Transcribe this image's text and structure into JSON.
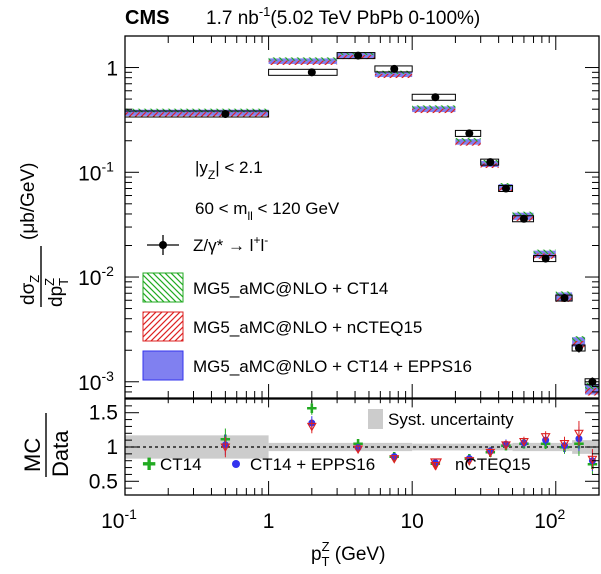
{
  "header": {
    "experiment": "CMS",
    "lumi": "1.7 nb",
    "lumi_exp": "-1",
    "conditions": "(5.02 TeV PbPb 0-100%)"
  },
  "colors": {
    "data": "#000000",
    "ct14": "#22aa22",
    "nCTEQ15": "#dd2222",
    "epps16": "#3333ee",
    "epps16_fill": "#8080f0",
    "syst": "#cccccc"
  },
  "chart_data": {
    "type": "scatter",
    "xscale": "log",
    "xlim": [
      0.1,
      200
    ],
    "xlabel": {
      "main": "p",
      "sub": "T",
      "sup": "Z",
      "unit": " (GeV)"
    },
    "x_ticks": [
      {
        "base": "10",
        "exp": "-1",
        "v": 0.1
      },
      {
        "base": "1",
        "exp": "",
        "v": 1
      },
      {
        "base": "10",
        "exp": "",
        "v": 10
      },
      {
        "base": "10",
        "exp": "2",
        "v": 100
      }
    ],
    "top": {
      "yscale": "log",
      "ylim": [
        0.0007,
        2.0
      ],
      "ylabel": {
        "num": "dσ",
        "num_sub": "Z",
        "den": "dp",
        "den_sub": "T",
        "den_sup": "Z",
        "unit": "(μb/GeV)"
      },
      "y_ticks": [
        {
          "base": "1",
          "exp": "",
          "v": 1
        },
        {
          "base": "10",
          "exp": "-1",
          "v": 0.1
        },
        {
          "base": "10",
          "exp": "-2",
          "v": 0.01
        },
        {
          "base": "10",
          "exp": "-3",
          "v": 0.001
        }
      ],
      "annotations": [
        {
          "text": "|y",
          "sub": "Z",
          "rest": "| < 2.1"
        },
        {
          "text": "60 < m",
          "sub": "ll",
          "rest": " < 120 GeV"
        }
      ],
      "legend": [
        {
          "id": "data",
          "label": "Z/γ* → l",
          "sup1": "+",
          "mid": "l",
          "sup2": "-"
        },
        {
          "id": "ct14",
          "label": "MG5_aMC@NLO + CT14"
        },
        {
          "id": "nCTEQ15",
          "label": "MG5_aMC@NLO + nCTEQ15"
        },
        {
          "id": "epps16",
          "label": "MG5_aMC@NLO + CT14 + EPPS16"
        }
      ],
      "bins": [
        {
          "lo": 0.1,
          "hi": 1.0,
          "x": 0.5,
          "data": 0.36,
          "err": 0.03,
          "mc": 0.37,
          "band": 0.025
        },
        {
          "lo": 1.0,
          "hi": 3.0,
          "x": 2.0,
          "data": 0.9,
          "err": 0.04,
          "mc": 1.15,
          "band": 0.07
        },
        {
          "lo": 3.0,
          "hi": 5.5,
          "x": 4.2,
          "data": 1.3,
          "err": 0.05,
          "mc": 1.3,
          "band": 0.07
        },
        {
          "lo": 5.5,
          "hi": 10.0,
          "x": 7.5,
          "data": 0.97,
          "err": 0.04,
          "mc": 0.86,
          "band": 0.05
        },
        {
          "lo": 10.0,
          "hi": 20.0,
          "x": 14.5,
          "data": 0.52,
          "err": 0.02,
          "mc": 0.4,
          "band": 0.025
        },
        {
          "lo": 20.0,
          "hi": 30.0,
          "x": 25.0,
          "data": 0.235,
          "err": 0.01,
          "mc": 0.195,
          "band": 0.012
        },
        {
          "lo": 30.0,
          "hi": 40.0,
          "x": 35.0,
          "data": 0.125,
          "err": 0.006,
          "mc": 0.12,
          "band": 0.008
        },
        {
          "lo": 40.0,
          "hi": 50.0,
          "x": 45.0,
          "data": 0.07,
          "err": 0.004,
          "mc": 0.072,
          "band": 0.005
        },
        {
          "lo": 50.0,
          "hi": 70.0,
          "x": 60.0,
          "data": 0.036,
          "err": 0.002,
          "mc": 0.038,
          "band": 0.003
        },
        {
          "lo": 70.0,
          "hi": 100.0,
          "x": 85.0,
          "data": 0.015,
          "err": 0.001,
          "mc": 0.0165,
          "band": 0.0013
        },
        {
          "lo": 100.0,
          "hi": 130.0,
          "x": 115.0,
          "data": 0.0063,
          "err": 0.0005,
          "mc": 0.0065,
          "band": 0.0006
        },
        {
          "lo": 130.0,
          "hi": 160.0,
          "x": 145.0,
          "data": 0.0021,
          "err": 0.0002,
          "mc": 0.0024,
          "band": 0.00025
        },
        {
          "lo": 160.0,
          "hi": 200.0,
          "x": 180.0,
          "data": 0.001,
          "err": 0.0001,
          "mc": 0.00085,
          "band": 0.0001
        }
      ]
    },
    "bottom": {
      "ylim": [
        0.3,
        1.7
      ],
      "ylabel": {
        "num": "MC",
        "den": "Data"
      },
      "y_ticks": [
        0.5,
        1,
        1.5
      ],
      "y_tick_labels": [
        "0.5",
        "1",
        "1.5"
      ],
      "syst_label": "Syst. uncertainty",
      "legend": [
        {
          "id": "ct14",
          "label": "CT14"
        },
        {
          "id": "epps16",
          "label": "CT14 + EPPS16"
        },
        {
          "id": "nCTEQ15",
          "label": "nCTEQ15"
        }
      ],
      "syst_bins": [
        {
          "lo": 0.1,
          "hi": 1.0,
          "err": 0.17
        },
        {
          "lo": 1.0,
          "hi": 10.0,
          "err": 0.06
        },
        {
          "lo": 10.0,
          "hi": 50.0,
          "err": 0.05
        },
        {
          "lo": 50.0,
          "hi": 130.0,
          "err": 0.06
        },
        {
          "lo": 130.0,
          "hi": 200.0,
          "err": 0.1
        }
      ],
      "series": [
        {
          "id": "ct14",
          "values": [
            1.12,
            1.57,
            1.05,
            0.86,
            0.76,
            0.83,
            0.93,
            1.02,
            1.05,
            1.05,
            1.0,
            1.05,
            0.75
          ]
        },
        {
          "id": "epps16",
          "values": [
            1.03,
            1.35,
            0.99,
            0.86,
            0.77,
            0.83,
            0.94,
            1.04,
            1.06,
            1.1,
            1.02,
            1.12,
            0.8
          ]
        },
        {
          "id": "nCTEQ15",
          "values": [
            1.0,
            1.3,
            0.97,
            0.83,
            0.73,
            0.8,
            0.92,
            1.03,
            1.08,
            1.15,
            1.05,
            1.2,
            0.82
          ]
        }
      ],
      "errors": [
        0.15,
        0.1,
        0.05,
        0.05,
        0.05,
        0.05,
        0.06,
        0.07,
        0.07,
        0.08,
        0.1,
        0.18,
        0.15
      ]
    }
  }
}
